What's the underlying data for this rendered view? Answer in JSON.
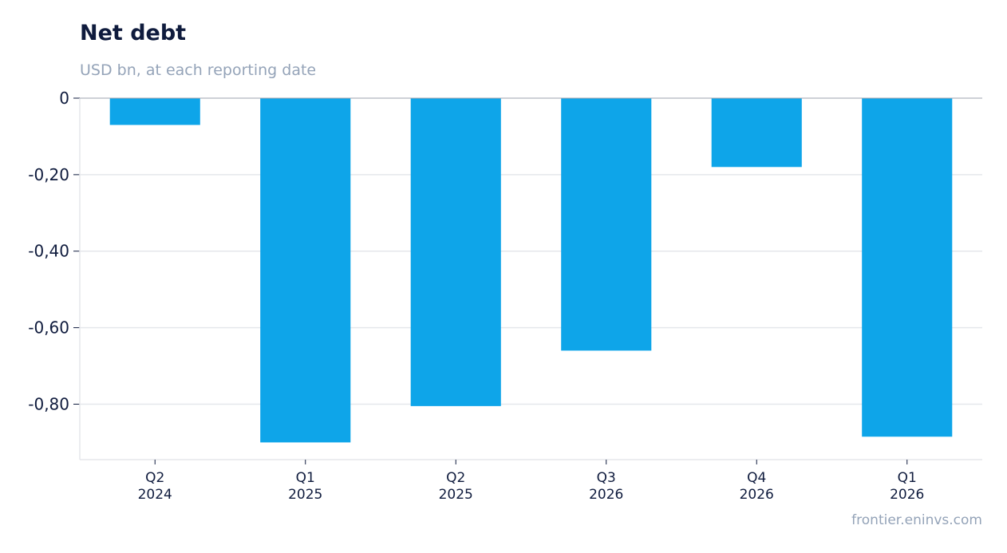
{
  "title": "Net debt",
  "subtitle": "USD bn, at each reporting date",
  "source": "frontier.eninvs.com",
  "colors": {
    "bar": "#0ea5e9",
    "grid": "#e5e7eb",
    "axis": "#9ca3af",
    "text": "#0f1b3d",
    "muted": "#94a3b8"
  },
  "chart_data": {
    "type": "bar",
    "title": "Net debt",
    "subtitle": "USD bn, at each reporting date",
    "xlabel": "",
    "ylabel": "",
    "categories": [
      [
        "Q2",
        "2024"
      ],
      [
        "Q1",
        "2025"
      ],
      [
        "Q2",
        "2025"
      ],
      [
        "Q3",
        "2026"
      ],
      [
        "Q4",
        "2026"
      ],
      [
        "Q1",
        "2026"
      ]
    ],
    "values": [
      -0.07,
      -0.9,
      -0.805,
      -0.66,
      -0.18,
      -0.885
    ],
    "ylim": [
      -0.945,
      0
    ],
    "yticks": [
      0,
      -0.2,
      -0.4,
      -0.6,
      -0.8
    ],
    "ytick_labels": [
      "0",
      "-0,20",
      "-0,40",
      "-0,60",
      "-0,80"
    ],
    "grid": true,
    "legend": "none"
  }
}
